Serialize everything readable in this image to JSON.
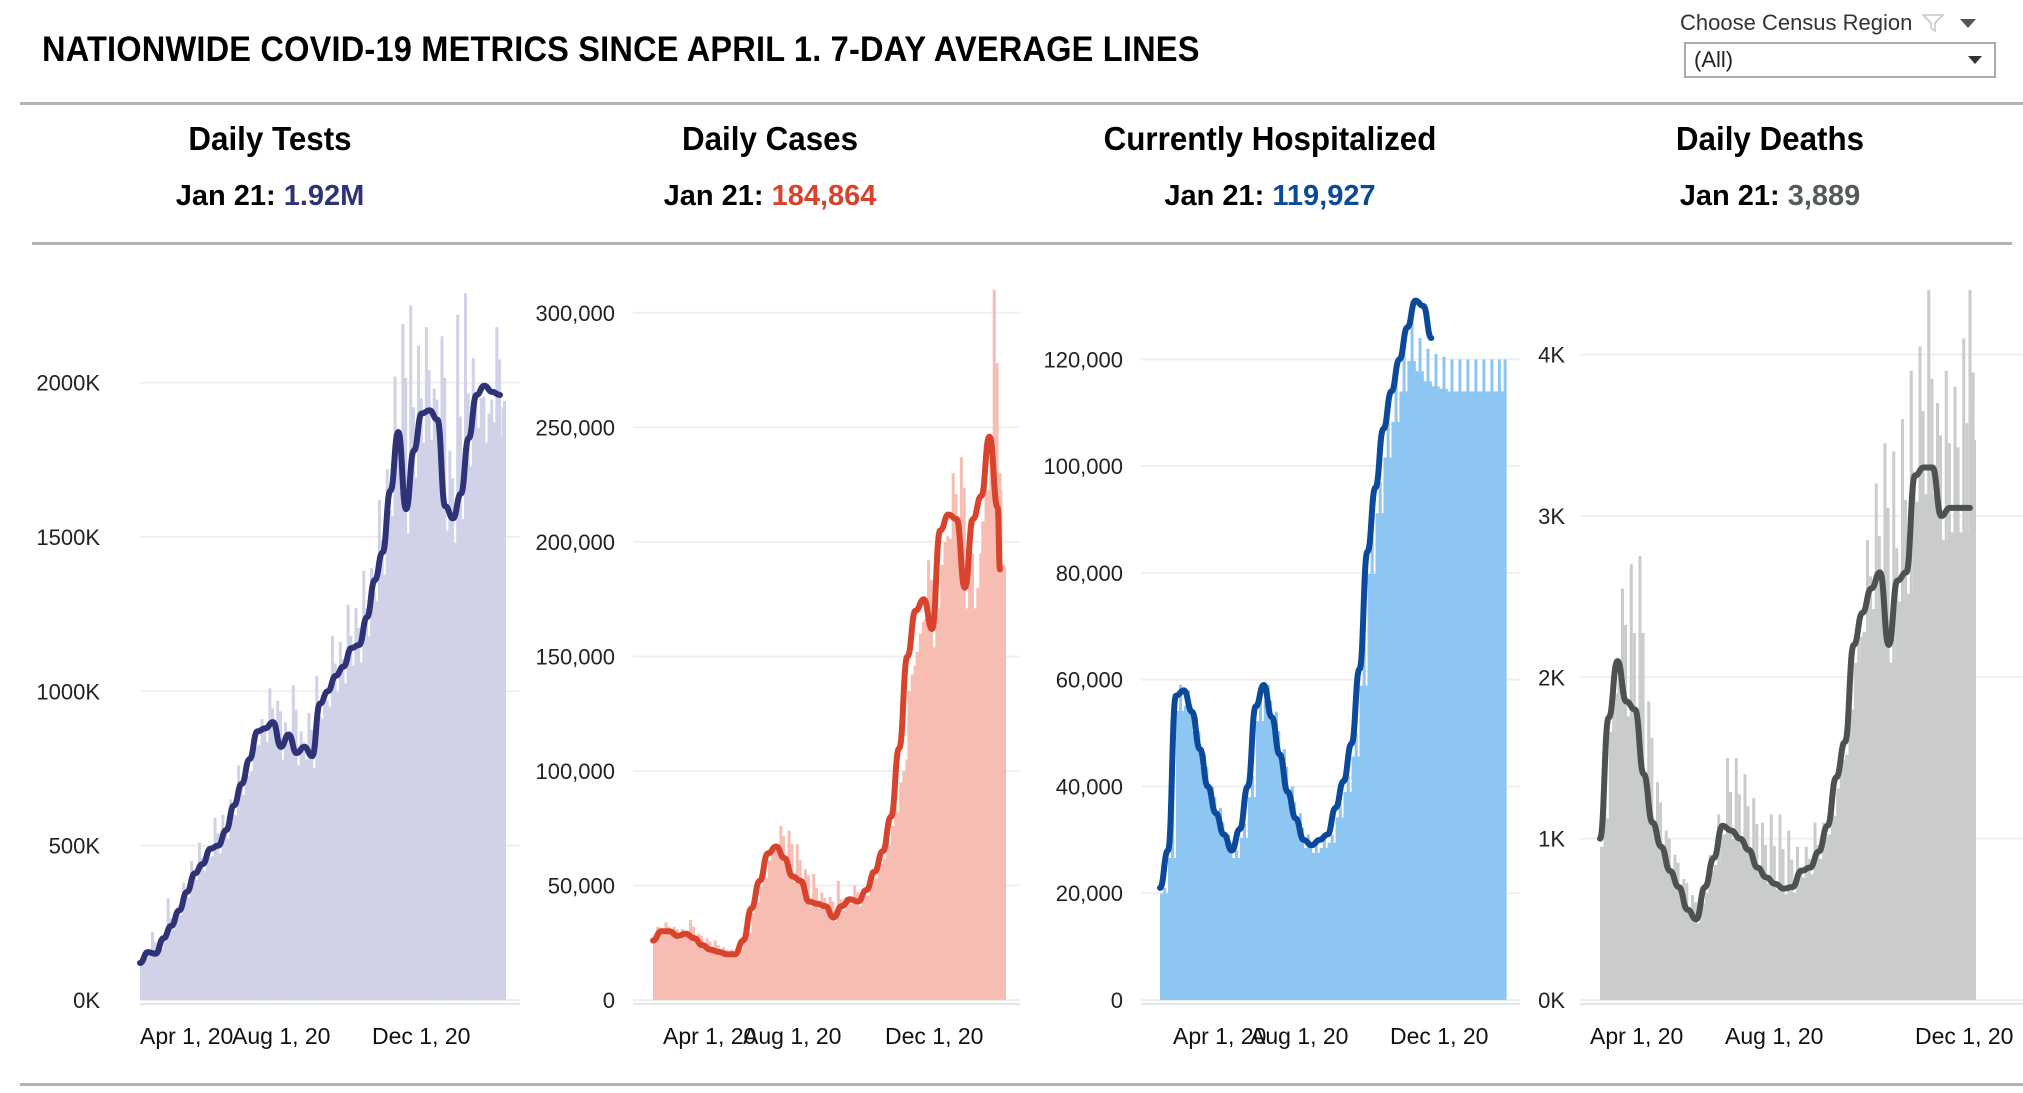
{
  "title": "NATIONWIDE COVID-19 METRICS SINCE APRIL 1. 7-DAY AVERAGE LINES",
  "filter": {
    "label": "Choose Census Region",
    "selected": "(All)"
  },
  "metrics": [
    {
      "title": "Daily Tests",
      "date_label": "Jan 21:",
      "value": "1.92M",
      "color": "#2e3377"
    },
    {
      "title": "Daily Cases",
      "date_label": "Jan 21:",
      "value": "184,864",
      "color": "#d9432b"
    },
    {
      "title": "Currently Hospitalized",
      "date_label": "Jan 21:",
      "value": "119,927",
      "color": "#0b4a9a"
    },
    {
      "title": "Daily Deaths",
      "date_label": "Jan 21:",
      "value": "3,889",
      "color": "#555a5c"
    }
  ],
  "chart_data": [
    {
      "type": "bar",
      "title": "Daily Tests",
      "xlabel": "",
      "ylabel": "",
      "x_ticks": [
        "Apr 1, 20",
        "Aug 1, 20",
        "Dec 1, 20"
      ],
      "y_ticks": [
        "0K",
        "500K",
        "1000K",
        "1500K",
        "2000K"
      ],
      "y_tick_values": [
        0,
        500000,
        1000000,
        1500000,
        2000000
      ],
      "ylim": [
        0,
        2300000
      ],
      "x_range_days": [
        0,
        322
      ],
      "bar_color": "#d1d2e8",
      "line_color": "#2e3377",
      "series": [
        {
          "name": "Daily",
          "x": [
            0,
            7,
            14,
            21,
            28,
            35,
            42,
            49,
            56,
            63,
            70,
            77,
            84,
            91,
            98,
            105,
            112,
            119,
            126,
            133,
            140,
            147,
            154,
            161,
            168,
            175,
            182,
            189,
            196,
            203,
            210,
            217,
            224,
            231,
            238,
            245,
            252,
            259,
            266,
            273,
            280,
            287,
            294,
            301,
            308,
            315,
            322
          ],
          "values": [
            150000,
            220000,
            180000,
            330000,
            290000,
            380000,
            450000,
            510000,
            480000,
            590000,
            600000,
            650000,
            760000,
            750000,
            860000,
            910000,
            1010000,
            970000,
            900000,
            1020000,
            870000,
            930000,
            1050000,
            980000,
            1180000,
            1160000,
            1280000,
            1270000,
            1390000,
            1400000,
            1620000,
            1720000,
            2020000,
            2190000,
            2250000,
            2120000,
            2180000,
            1980000,
            2150000,
            1780000,
            2220000,
            2290000,
            2080000,
            1950000,
            1900000,
            2180000,
            1920000
          ]
        },
        {
          "name": "7-day average",
          "x": [
            0,
            7,
            14,
            21,
            28,
            35,
            42,
            49,
            56,
            63,
            70,
            77,
            84,
            91,
            98,
            105,
            112,
            119,
            126,
            133,
            140,
            147,
            154,
            161,
            168,
            175,
            182,
            189,
            196,
            203,
            210,
            217,
            224,
            231,
            238,
            245,
            252,
            259,
            266,
            273,
            280,
            287,
            294,
            301,
            308,
            315,
            322
          ],
          "values": [
            120000,
            155000,
            150000,
            200000,
            240000,
            290000,
            350000,
            410000,
            440000,
            490000,
            500000,
            550000,
            630000,
            700000,
            780000,
            870000,
            880000,
            900000,
            820000,
            860000,
            800000,
            820000,
            790000,
            960000,
            1000000,
            1050000,
            1080000,
            1140000,
            1150000,
            1240000,
            1360000,
            1450000,
            1650000,
            1840000,
            1590000,
            1780000,
            1900000,
            1910000,
            1880000,
            1600000,
            1560000,
            1640000,
            1820000,
            1960000,
            1990000,
            1970000,
            1960000
          ]
        }
      ]
    },
    {
      "type": "bar",
      "title": "Daily Cases",
      "xlabel": "",
      "ylabel": "",
      "x_ticks": [
        "Apr 1, 20",
        "Aug 1, 20",
        "Dec 1, 20"
      ],
      "y_ticks": [
        "0",
        "50,000",
        "100,000",
        "150,000",
        "200,000",
        "250,000",
        "300,000"
      ],
      "y_tick_values": [
        0,
        50000,
        100000,
        150000,
        200000,
        250000,
        300000
      ],
      "ylim": [
        0,
        310000
      ],
      "x_range_days": [
        0,
        296
      ],
      "bar_color": "#f8bdb2",
      "line_color": "#d9432b",
      "series": [
        {
          "name": "Daily",
          "x": [
            0,
            7,
            14,
            21,
            28,
            35,
            42,
            49,
            56,
            63,
            70,
            77,
            84,
            91,
            98,
            105,
            112,
            119,
            126,
            133,
            140,
            147,
            154,
            161,
            168,
            175,
            182,
            189,
            196,
            203,
            210,
            217,
            224,
            231,
            238,
            245,
            252,
            259,
            266,
            273,
            280,
            287,
            294,
            296
          ],
          "values": [
            32000,
            34000,
            32000,
            31000,
            35000,
            29000,
            27000,
            26000,
            23000,
            22000,
            24000,
            33000,
            45000,
            55000,
            67000,
            76000,
            74000,
            68000,
            57000,
            55000,
            47000,
            45000,
            52000,
            45000,
            50000,
            48000,
            57000,
            63000,
            70000,
            84000,
            100000,
            142000,
            160000,
            192000,
            180000,
            200000,
            230000,
            237000,
            210000,
            180000,
            225000,
            310000,
            230000,
            190000
          ]
        },
        {
          "name": "7-day average",
          "x": [
            0,
            7,
            14,
            21,
            28,
            35,
            42,
            49,
            56,
            63,
            70,
            77,
            84,
            91,
            98,
            105,
            112,
            119,
            126,
            133,
            140,
            147,
            154,
            161,
            168,
            175,
            182,
            189,
            196,
            203,
            210,
            217,
            224,
            231,
            238,
            245,
            252,
            259,
            266,
            273,
            280,
            287,
            294,
            296
          ],
          "values": [
            26000,
            30000,
            30000,
            28000,
            29000,
            27000,
            24000,
            22000,
            21000,
            20000,
            20000,
            26000,
            40000,
            52000,
            64000,
            67000,
            62000,
            54000,
            52000,
            43000,
            42000,
            41000,
            36000,
            41000,
            44000,
            43000,
            48000,
            56000,
            65000,
            80000,
            110000,
            150000,
            170000,
            175000,
            162000,
            205000,
            212000,
            210000,
            180000,
            210000,
            220000,
            246000,
            215000,
            188000
          ]
        }
      ]
    },
    {
      "type": "area",
      "title": "Currently Hospitalized",
      "xlabel": "",
      "ylabel": "",
      "x_ticks": [
        "Apr 1, 20",
        "Aug 1, 20",
        "Dec 1, 20"
      ],
      "y_ticks": [
        "0",
        "20,000",
        "40,000",
        "60,000",
        "80,000",
        "100,000",
        "120,000"
      ],
      "y_tick_values": [
        0,
        20000,
        40000,
        60000,
        80000,
        100000,
        120000
      ],
      "ylim": [
        0,
        133000
      ],
      "x_range_days": [
        0,
        300
      ],
      "bar_color": "#8ec6f3",
      "line_color": "#0b4a9a",
      "series": [
        {
          "name": "Current",
          "x": [
            0,
            7,
            14,
            21,
            28,
            35,
            42,
            49,
            56,
            63,
            70,
            77,
            84,
            91,
            98,
            105,
            112,
            119,
            126,
            133,
            140,
            147,
            154,
            161,
            168,
            175,
            182,
            189,
            196,
            203,
            210,
            217,
            224,
            231,
            238,
            245,
            252,
            259,
            266,
            273,
            280,
            287,
            294,
            300
          ],
          "values": [
            21000,
            50000,
            59000,
            58000,
            53000,
            46000,
            40000,
            36000,
            31000,
            28000,
            33000,
            42000,
            56000,
            59000,
            54000,
            47000,
            40000,
            35000,
            31000,
            29500,
            30000,
            31000,
            37000,
            42000,
            50000,
            68000,
            87000,
            97000,
            110000,
            118000,
            126000,
            131000,
            124000,
            122000,
            121000,
            120500,
            120000,
            120000,
            120000,
            120000,
            120000,
            120000,
            120000,
            120000
          ]
        },
        {
          "name": "7-day average",
          "x": [
            0,
            7,
            14,
            21,
            28,
            35,
            42,
            49,
            56,
            63,
            70,
            77,
            84,
            91,
            98,
            105,
            112,
            119,
            126,
            133,
            140,
            147,
            154,
            161,
            168,
            175,
            182,
            189,
            196,
            203,
            210,
            217,
            224,
            231,
            238,
            245,
            252,
            259,
            266,
            273,
            280,
            287,
            294,
            300
          ],
          "values": [
            21000,
            28000,
            57000,
            58000,
            54000,
            47000,
            40000,
            35000,
            31000,
            28000,
            32000,
            40000,
            55000,
            59000,
            53000,
            46000,
            39000,
            34000,
            30000,
            29000,
            30000,
            31000,
            36000,
            41000,
            48000,
            62000,
            84000,
            96000,
            107000,
            114000,
            120000,
            126000,
            131000,
            130000,
            124000,
            null,
            null,
            null,
            null,
            null,
            null,
            null,
            null,
            null
          ]
        }
      ]
    },
    {
      "type": "bar",
      "title": "Daily Deaths",
      "xlabel": "",
      "ylabel": "",
      "x_ticks": [
        "Apr 1, 20",
        "Aug 1, 20",
        "Dec 1, 20"
      ],
      "y_ticks": [
        "0K",
        "1K",
        "2K",
        "3K",
        "4K"
      ],
      "y_tick_values": [
        0,
        1000,
        2000,
        3000,
        4000
      ],
      "ylim": [
        0,
        4400
      ],
      "x_range_days": [
        0,
        296
      ],
      "bar_color": "#c9cccb",
      "line_color": "#4d5152",
      "series": [
        {
          "name": "Daily",
          "x": [
            0,
            7,
            14,
            21,
            28,
            35,
            42,
            49,
            56,
            63,
            70,
            77,
            84,
            91,
            98,
            105,
            112,
            119,
            126,
            133,
            140,
            147,
            154,
            161,
            168,
            175,
            182,
            189,
            196,
            203,
            210,
            217,
            224,
            231,
            238,
            245,
            252,
            259,
            266,
            273,
            280,
            287,
            294,
            296
          ],
          "values": [
            1250,
            2050,
            2550,
            2700,
            2750,
            1850,
            1350,
            1050,
            900,
            750,
            650,
            700,
            900,
            1150,
            1500,
            1500,
            1400,
            1250,
            1100,
            1150,
            1150,
            1050,
            950,
            950,
            1100,
            1100,
            1200,
            1600,
            2000,
            2300,
            2850,
            3200,
            3450,
            3400,
            3600,
            3900,
            4050,
            4400,
            3700,
            3900,
            3800,
            4100,
            4400,
            3889
          ]
        },
        {
          "name": "7-day average",
          "x": [
            0,
            7,
            14,
            21,
            28,
            35,
            42,
            49,
            56,
            63,
            70,
            77,
            84,
            91,
            98,
            105,
            112,
            119,
            126,
            133,
            140,
            147,
            154,
            161,
            168,
            175,
            182,
            189,
            196,
            203,
            210,
            217,
            224,
            231,
            238,
            245,
            252,
            259,
            266,
            273,
            280,
            287,
            294,
            296
          ],
          "values": [
            1000,
            1750,
            2100,
            1850,
            1800,
            1400,
            1100,
            950,
            800,
            700,
            560,
            500,
            700,
            880,
            1080,
            1050,
            1000,
            930,
            820,
            760,
            720,
            690,
            700,
            800,
            820,
            920,
            1080,
            1380,
            1600,
            2200,
            2400,
            2550,
            2650,
            2200,
            2600,
            2650,
            3250,
            3300,
            3300,
            3000,
            3050,
            3050,
            3050,
            3050
          ]
        }
      ]
    }
  ]
}
